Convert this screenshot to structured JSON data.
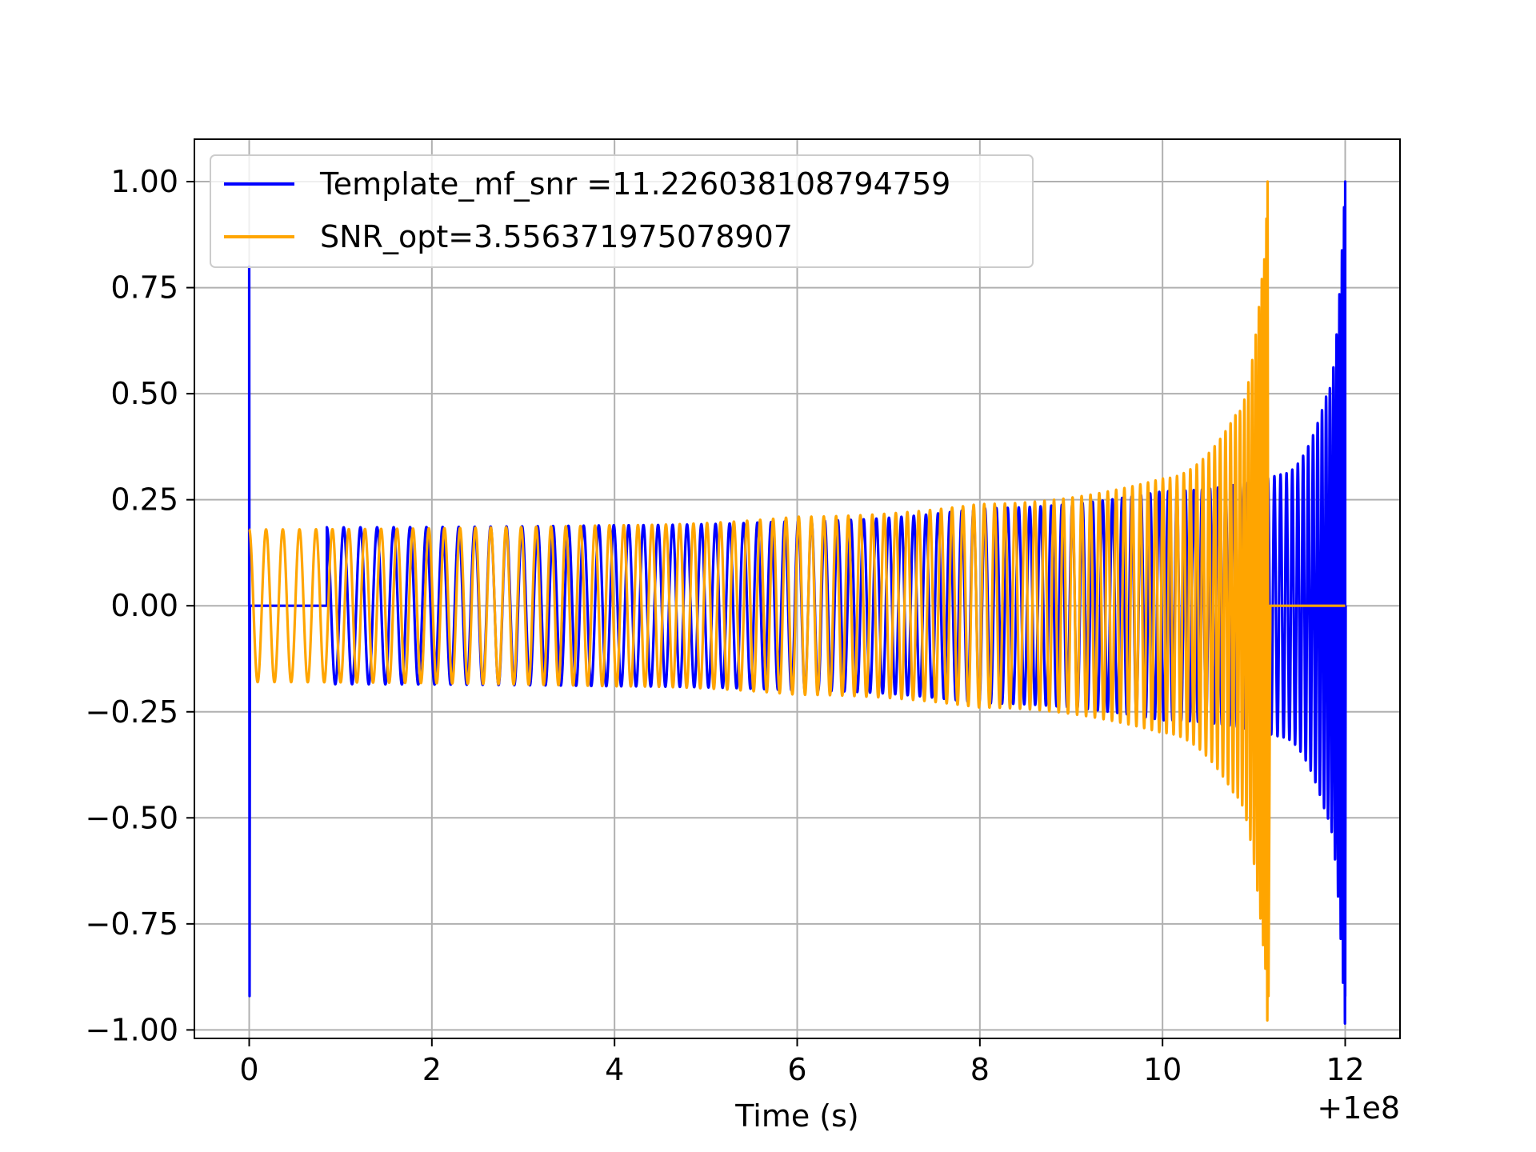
{
  "chart_data": {
    "type": "line",
    "title": "",
    "xlabel": "Time (s)",
    "ylabel": "",
    "x_offset_label": "+1e8",
    "xlim": [
      -0.6,
      12.6
    ],
    "ylim": [
      -1.02,
      1.1
    ],
    "xticks": [
      0,
      2,
      4,
      6,
      8,
      10,
      12
    ],
    "xtick_labels": [
      "0",
      "2",
      "4",
      "6",
      "8",
      "10",
      "12"
    ],
    "yticks": [
      1.0,
      0.75,
      0.5,
      0.25,
      0.0,
      -0.25,
      -0.5,
      -0.75,
      -1.0
    ],
    "ytick_labels": [
      "1.00",
      "0.75",
      "0.50",
      "0.25",
      "0.00",
      "−0.25",
      "−0.50",
      "−0.75",
      "−1.00"
    ],
    "grid": true,
    "legend_position": "top-left",
    "series": [
      {
        "name": "Template_mf_snr =11.226038108794759",
        "color": "#0000ff",
        "start": 0.85,
        "merger": 12.0,
        "peak": 1.0,
        "trough": -0.92,
        "inspiral_amplitude": [
          [
            0.85,
            0.185
          ],
          [
            4.0,
            0.19
          ],
          [
            6.0,
            0.2
          ],
          [
            8.0,
            0.23
          ],
          [
            10.0,
            0.27
          ],
          [
            11.3,
            0.31
          ],
          [
            11.8,
            0.5
          ],
          [
            12.0,
            1.0
          ]
        ],
        "prefix_spike": {
          "x": 0.0,
          "max": 0.8,
          "min": -0.92
        }
      },
      {
        "name": "SNR_opt=3.556371975078907",
        "color": "#ffa500",
        "start": 0.0,
        "merger": 11.15,
        "peak": 1.0,
        "trough": -0.92,
        "inspiral_amplitude": [
          [
            0.0,
            0.18
          ],
          [
            4.0,
            0.19
          ],
          [
            6.0,
            0.21
          ],
          [
            8.0,
            0.24
          ],
          [
            10.0,
            0.3
          ],
          [
            10.8,
            0.45
          ],
          [
            11.1,
            0.8
          ],
          [
            11.15,
            1.0
          ]
        ],
        "tail_to": 12.0
      }
    ]
  }
}
